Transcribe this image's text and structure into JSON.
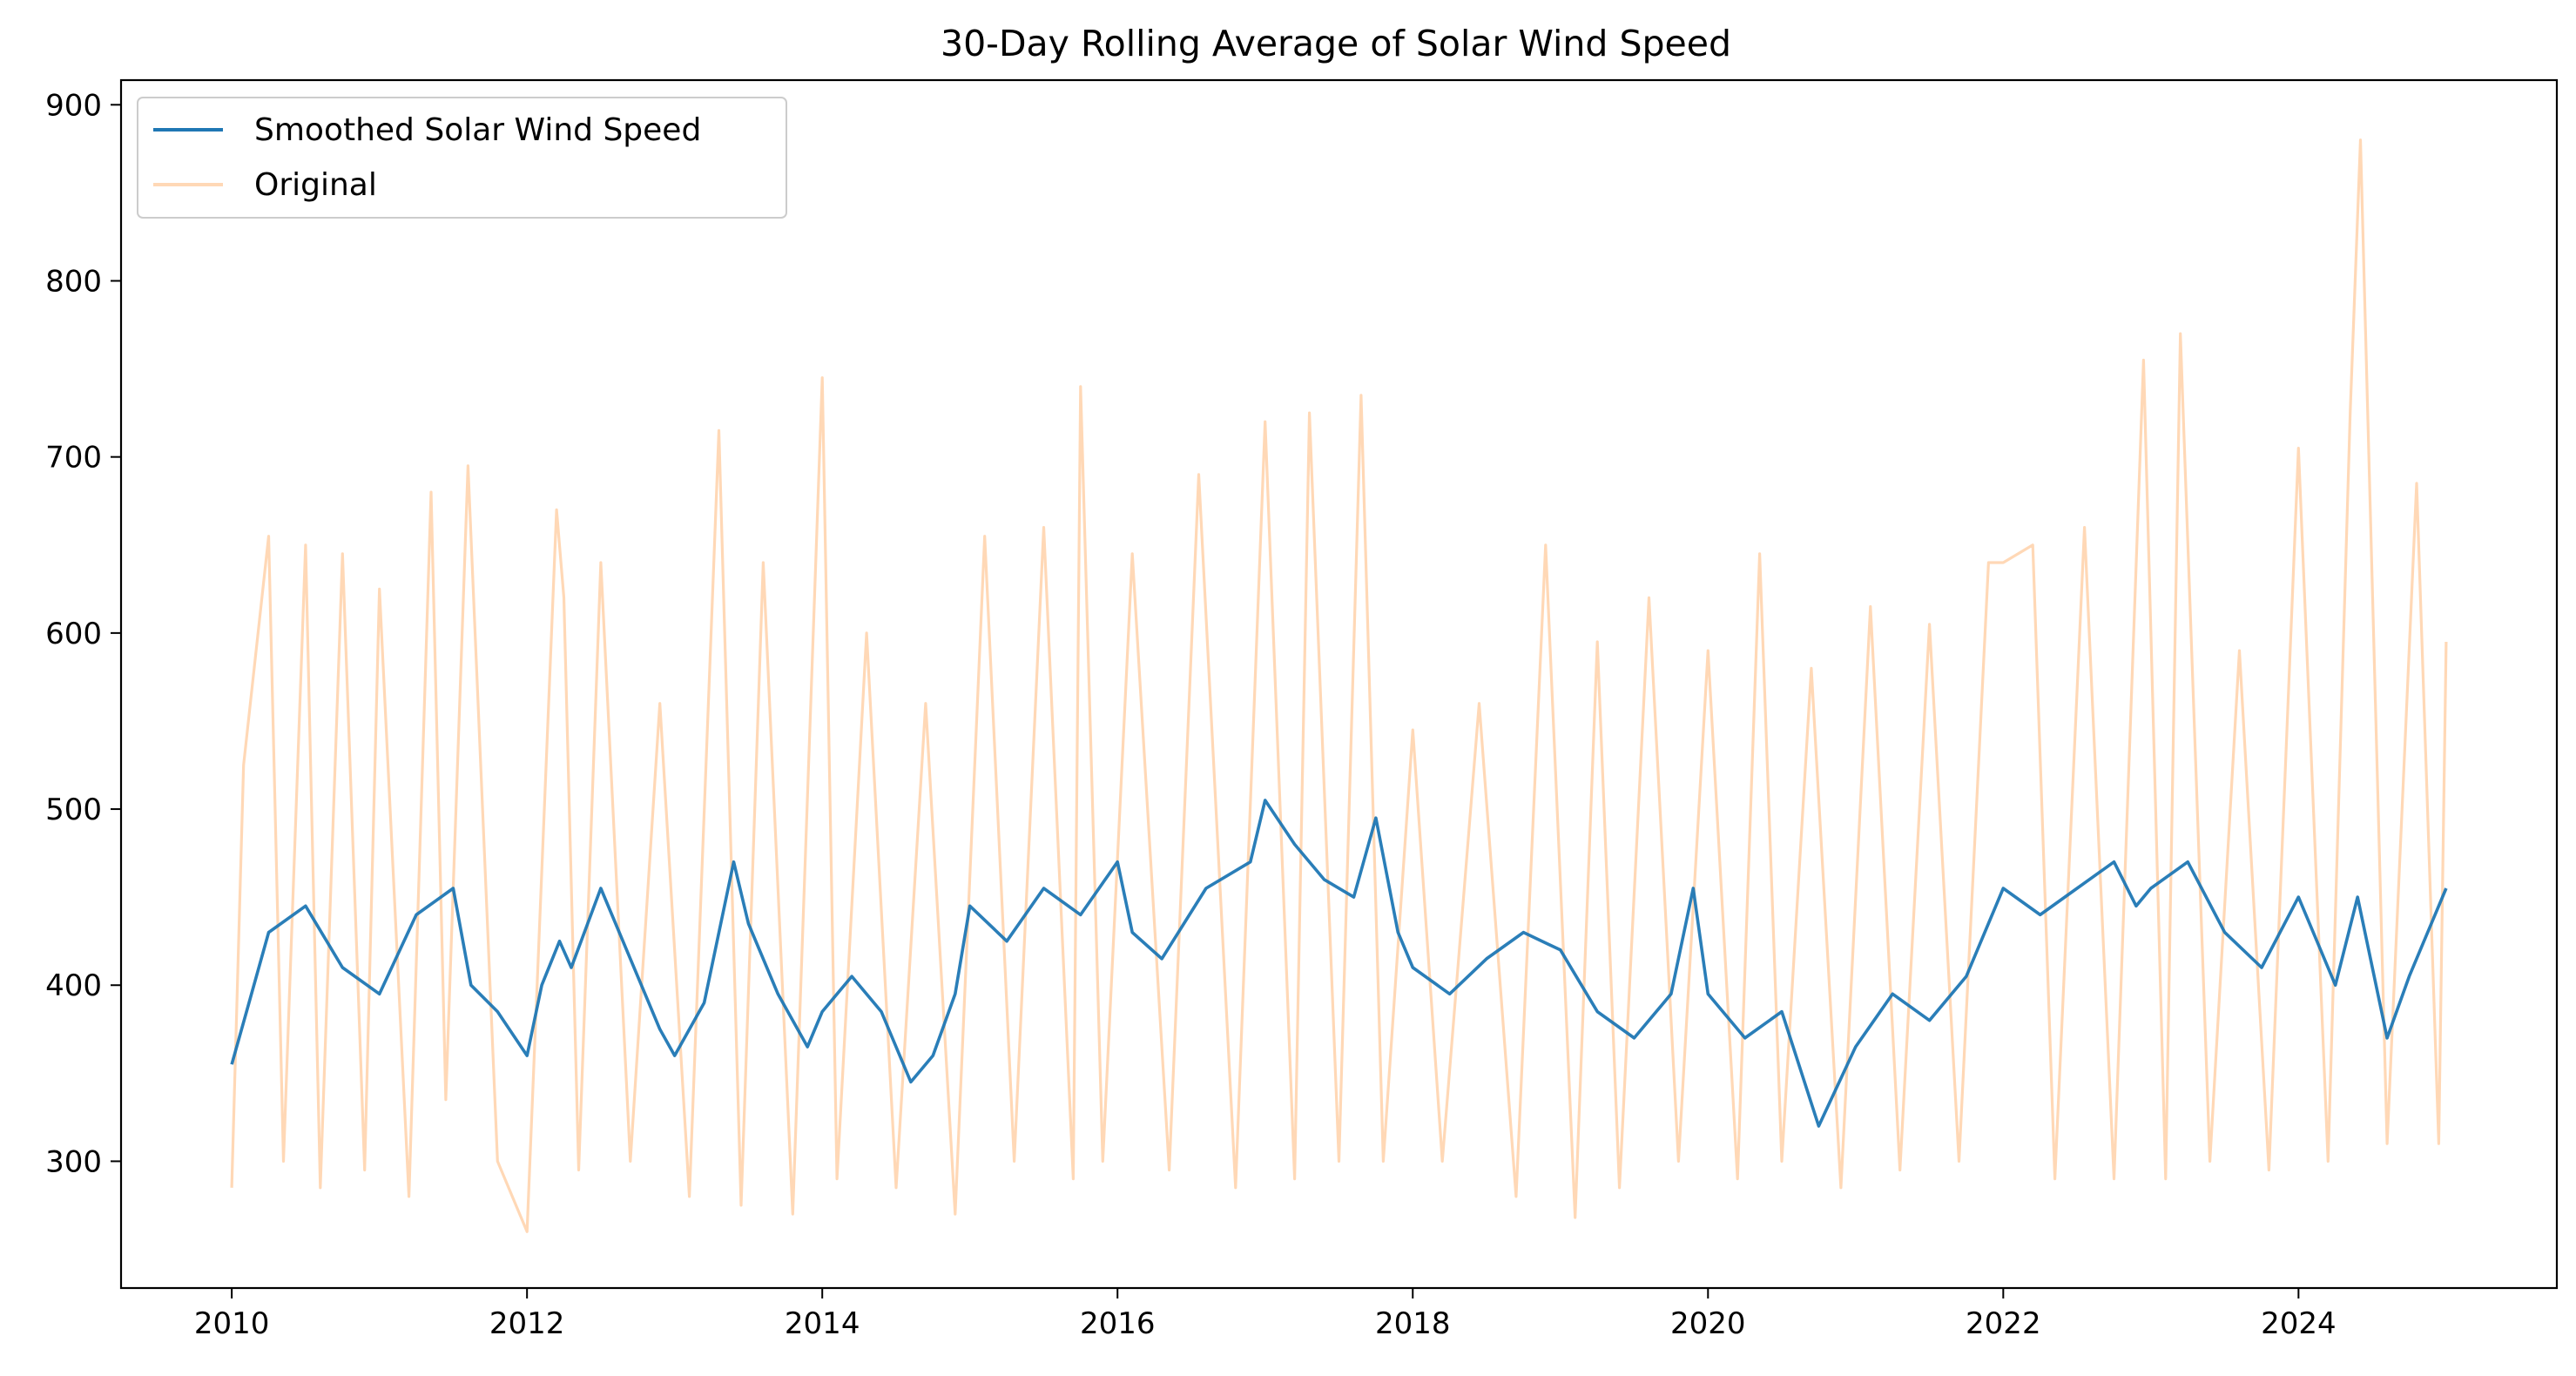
{
  "chart_data": {
    "type": "line",
    "title": "30-Day Rolling Average of Solar Wind Speed",
    "xlabel": "",
    "ylabel": "",
    "xlim": [
      2009.25,
      2025.75
    ],
    "ylim": [
      228,
      914
    ],
    "x_ticks": [
      "2010",
      "2012",
      "2014",
      "2016",
      "2018",
      "2020",
      "2022",
      "2024"
    ],
    "y_ticks": [
      "300",
      "400",
      "500",
      "600",
      "700",
      "800",
      "900"
    ],
    "grid": false,
    "legend_position": "upper left",
    "colors": {
      "smoothed": "#1f77b4",
      "original": "#ffbe86"
    },
    "series": [
      {
        "name": "Smoothed Solar Wind Speed",
        "color": "#1f77b4",
        "x": [
          2010.0,
          2010.1,
          2010.25,
          2010.5,
          2010.75,
          2011.0,
          2011.25,
          2011.5,
          2011.62,
          2011.8,
          2012.0,
          2012.1,
          2012.22,
          2012.3,
          2012.5,
          2012.7,
          2012.9,
          2013.0,
          2013.2,
          2013.4,
          2013.5,
          2013.7,
          2013.9,
          2014.0,
          2014.2,
          2014.4,
          2014.6,
          2014.75,
          2014.9,
          2015.0,
          2015.25,
          2015.5,
          2015.75,
          2016.0,
          2016.1,
          2016.3,
          2016.6,
          2016.9,
          2017.0,
          2017.2,
          2017.4,
          2017.6,
          2017.75,
          2017.9,
          2018.0,
          2018.25,
          2018.5,
          2018.75,
          2019.0,
          2019.25,
          2019.5,
          2019.75,
          2019.9,
          2020.0,
          2020.25,
          2020.5,
          2020.75,
          2021.0,
          2021.25,
          2021.5,
          2021.75,
          2022.0,
          2022.25,
          2022.5,
          2022.75,
          2022.9,
          2023.0,
          2023.25,
          2023.5,
          2023.75,
          2024.0,
          2024.25,
          2024.4,
          2024.6,
          2024.75,
          2025.0
        ],
        "values": [
          355,
          385,
          430,
          445,
          410,
          395,
          440,
          455,
          400,
          385,
          360,
          400,
          425,
          410,
          455,
          415,
          375,
          360,
          390,
          470,
          435,
          395,
          365,
          385,
          405,
          385,
          345,
          360,
          395,
          445,
          425,
          455,
          440,
          470,
          430,
          415,
          455,
          470,
          505,
          480,
          460,
          450,
          495,
          430,
          410,
          395,
          415,
          430,
          420,
          385,
          370,
          395,
          455,
          395,
          370,
          385,
          320,
          365,
          395,
          380,
          405,
          455,
          440,
          455,
          470,
          445,
          455,
          470,
          430,
          410,
          450,
          400,
          450,
          370,
          405,
          455
        ]
      },
      {
        "name": "Original",
        "color": "#ffbe86",
        "x": [
          2010.0,
          2010.08,
          2010.25,
          2010.35,
          2010.5,
          2010.6,
          2010.75,
          2010.9,
          2011.0,
          2011.2,
          2011.35,
          2011.45,
          2011.6,
          2011.8,
          2012.0,
          2012.2,
          2012.25,
          2012.35,
          2012.5,
          2012.7,
          2012.9,
          2013.1,
          2013.3,
          2013.45,
          2013.6,
          2013.8,
          2014.0,
          2014.1,
          2014.3,
          2014.5,
          2014.7,
          2014.9,
          2015.1,
          2015.3,
          2015.5,
          2015.7,
          2015.75,
          2015.9,
          2016.1,
          2016.35,
          2016.55,
          2016.8,
          2017.0,
          2017.2,
          2017.3,
          2017.5,
          2017.65,
          2017.8,
          2018.0,
          2018.2,
          2018.45,
          2018.7,
          2018.9,
          2019.1,
          2019.25,
          2019.4,
          2019.6,
          2019.8,
          2020.0,
          2020.2,
          2020.35,
          2020.5,
          2020.7,
          2020.9,
          2021.1,
          2021.3,
          2021.5,
          2021.7,
          2021.9,
          2022.0,
          2022.2,
          2022.35,
          2022.55,
          2022.75,
          2022.95,
          2023.1,
          2023.2,
          2023.4,
          2023.6,
          2023.8,
          2024.0,
          2024.2,
          2024.35,
          2024.42,
          2024.6,
          2024.8,
          2024.95,
          2025.0
        ],
        "values": [
          285,
          525,
          655,
          300,
          650,
          285,
          645,
          295,
          625,
          280,
          680,
          335,
          695,
          300,
          260,
          670,
          620,
          295,
          640,
          300,
          560,
          280,
          715,
          275,
          640,
          270,
          745,
          290,
          600,
          285,
          560,
          270,
          655,
          300,
          660,
          290,
          740,
          300,
          645,
          295,
          690,
          285,
          720,
          290,
          725,
          300,
          735,
          300,
          545,
          300,
          560,
          280,
          650,
          268,
          595,
          285,
          620,
          300,
          590,
          290,
          645,
          300,
          580,
          285,
          615,
          295,
          605,
          300,
          640,
          640,
          650,
          290,
          660,
          290,
          755,
          290,
          770,
          300,
          590,
          295,
          705,
          300,
          725,
          880,
          310,
          685,
          310,
          595
        ]
      }
    ]
  }
}
